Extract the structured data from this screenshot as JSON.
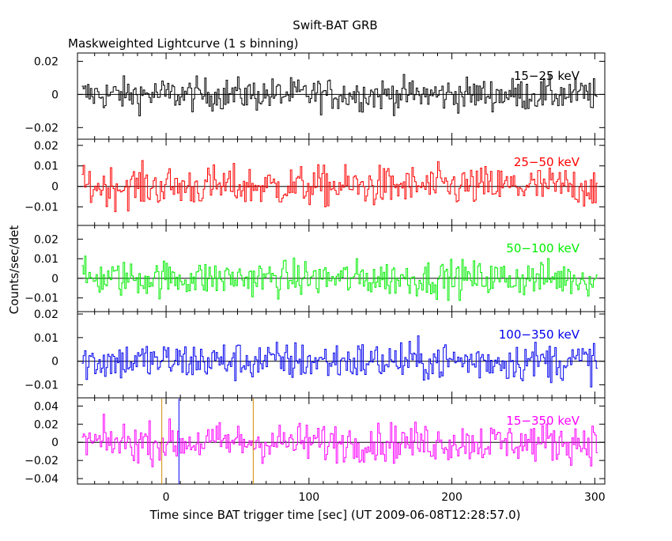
{
  "chart_data": {
    "type": "line",
    "title": "Swift-BAT GRB",
    "subtitle": "Maskweighted Lightcurve (1 s binning)",
    "xlabel": "Time since BAT trigger time [sec] (UT 2009-06-08T12:28:57.0)",
    "ylabel": "Counts/sec/det",
    "xlim": [
      -62,
      307
    ],
    "x_ticks": [
      0,
      100,
      200,
      300
    ],
    "bin_seconds": 1,
    "markers": [
      {
        "x": -3,
        "color": "#d08a00"
      },
      {
        "x": 9,
        "color": "#0000ff"
      },
      {
        "x": 61,
        "color": "#d08a00"
      }
    ],
    "panels": [
      {
        "name": "15-25 keV",
        "label": "15−25 keV",
        "color": "#000000",
        "ylim": [
          -0.027,
          0.025
        ],
        "yticks": [
          0.02,
          0,
          -0.02
        ],
        "yticklabels": [
          "0.02",
          "0",
          "−0.02"
        ],
        "noise_amplitude": 0.0065
      },
      {
        "name": "25-50 keV",
        "label": "25−50 keV",
        "color": "#ff0000",
        "ylim": [
          -0.019,
          0.023
        ],
        "yticks": [
          0.02,
          0.01,
          0,
          -0.01
        ],
        "yticklabels": [
          "0.02",
          "0.01",
          "0",
          "−0.01"
        ],
        "noise_amplitude": 0.0065
      },
      {
        "name": "50-100 keV",
        "label": "50−100 keV",
        "color": "#00ee00",
        "ylim": [
          -0.017,
          0.027
        ],
        "yticks": [
          0.02,
          0.01,
          0,
          -0.01
        ],
        "yticklabels": [
          "0.02",
          "0.01",
          "0",
          "−0.01"
        ],
        "noise_amplitude": 0.006
      },
      {
        "name": "100-350 keV",
        "label": "100−350 keV",
        "color": "#0000ee",
        "ylim": [
          -0.0155,
          0.021
        ],
        "yticks": [
          0.02,
          0.01,
          0,
          -0.01
        ],
        "yticklabels": [
          "0.02",
          "0.01",
          "0",
          "−0.01"
        ],
        "noise_amplitude": 0.0055
      },
      {
        "name": "15-350 keV",
        "label": "15−350 keV",
        "color": "#ff00ff",
        "ylim": [
          -0.046,
          0.049
        ],
        "yticks": [
          0.04,
          0.02,
          0,
          -0.02,
          -0.04
        ],
        "yticklabels": [
          "0.04",
          "0.02",
          "0",
          "−0.02",
          "−0.04"
        ],
        "noise_amplitude": 0.014
      }
    ]
  }
}
